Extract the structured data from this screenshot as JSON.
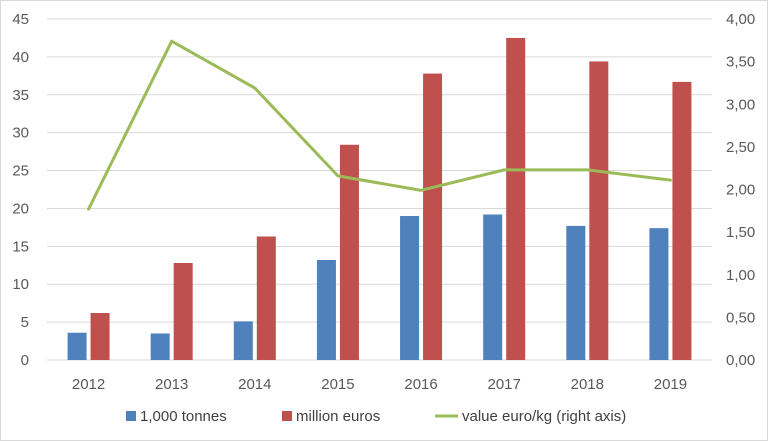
{
  "chart_data": {
    "type": "bar",
    "categories": [
      "2012",
      "2013",
      "2014",
      "2015",
      "2016",
      "2017",
      "2018",
      "2019"
    ],
    "series": [
      {
        "name": "1,000 tonnes",
        "type": "bar",
        "axis": "left",
        "color": "#4f81bd",
        "values": [
          3.6,
          3.5,
          5.1,
          13.2,
          19.0,
          19.2,
          17.7,
          17.4
        ]
      },
      {
        "name": "million euros",
        "type": "bar",
        "axis": "left",
        "color": "#c0504d",
        "values": [
          6.2,
          12.8,
          16.3,
          28.4,
          37.8,
          42.5,
          39.4,
          36.7
        ]
      },
      {
        "name": "value euro/kg (right axis)",
        "type": "line",
        "axis": "right",
        "color": "#9bbb59",
        "values": [
          1.77,
          3.74,
          3.19,
          2.16,
          1.99,
          2.23,
          2.23,
          2.11
        ]
      }
    ],
    "y_left": {
      "min": 0,
      "max": 45,
      "step": 5,
      "ticks": [
        "0",
        "5",
        "10",
        "15",
        "20",
        "25",
        "30",
        "35",
        "40",
        "45"
      ]
    },
    "y_right": {
      "min": 0,
      "max": 4,
      "step": 0.5,
      "ticks": [
        "0,00",
        "0,50",
        "1,00",
        "1,50",
        "2,00",
        "2,50",
        "3,00",
        "3,50",
        "4,00"
      ]
    },
    "grid": true,
    "legend_position": "bottom"
  }
}
